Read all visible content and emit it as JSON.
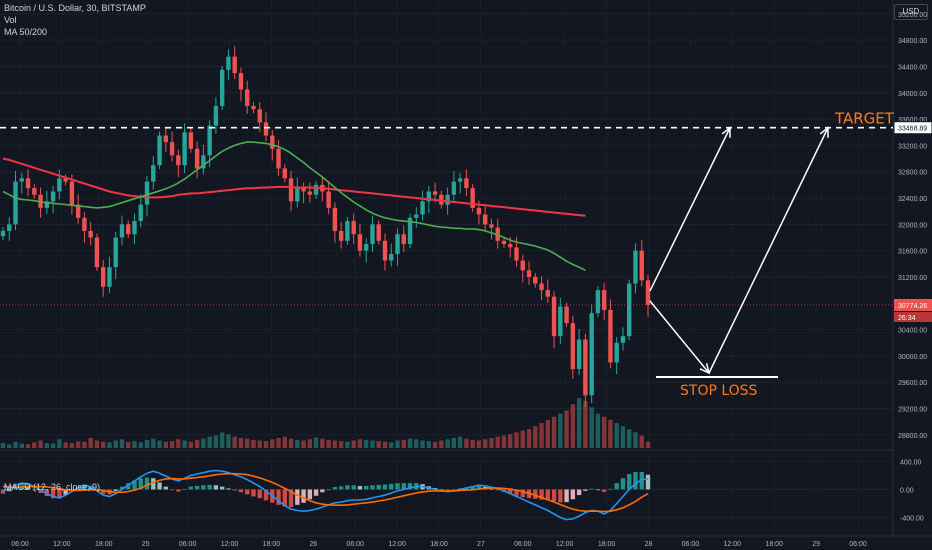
{
  "header": {
    "symbol_line": "Bitcoin / U.S. Dollar, 30, BITSTAMP",
    "volume_label": "Vol",
    "ma_label": "MA 50/200",
    "currency": "USD",
    "macd_label": "MACD (12, 26, close, 9)"
  },
  "colors": {
    "background": "#131722",
    "up": "#26a69a",
    "down": "#ef5350",
    "ma_fast": "#4caf50",
    "ma_slow": "#f23645",
    "macd_line": "#2196f3",
    "signal_line": "#ff6d00",
    "annotation": "#ffffff",
    "annotation_text": "#ff7a1a"
  },
  "chart_data": [
    {
      "type": "candlestick",
      "title": "Bitcoin / U.S. Dollar, 30, BITSTAMP",
      "y_ticks": [
        "35200.00",
        "34800.00",
        "34400.00",
        "34000.00",
        "33600.00",
        "33200.00",
        "32800.00",
        "32400.00",
        "32000.00",
        "31600.00",
        "31200.00",
        "30400.00",
        "30000.00",
        "29600.00",
        "29200.00",
        "28800.00"
      ],
      "y_range": [
        28600,
        35350
      ],
      "x_ticks": [
        "06:00",
        "12:00",
        "18:00",
        "25",
        "06:00",
        "12:00",
        "18:00",
        "26",
        "06:00",
        "12:00",
        "18:00",
        "27",
        "06:00",
        "12:00",
        "18:00",
        "28",
        "06:00",
        "12:00",
        "18:00",
        "29",
        "06:00"
      ],
      "last_price": "30774.26",
      "countdown": "26:34",
      "target_price": "33468.89",
      "price_path": [
        31900,
        32000,
        32650,
        32700,
        32550,
        32450,
        32250,
        32350,
        32500,
        32700,
        32650,
        32300,
        32100,
        31900,
        31800,
        31350,
        31050,
        31350,
        31800,
        32000,
        31850,
        32050,
        32300,
        32650,
        32900,
        33350,
        33250,
        33050,
        32900,
        33400,
        33150,
        32850,
        33050,
        33500,
        33800,
        34350,
        34550,
        34300,
        34050,
        33800,
        33750,
        33550,
        33350,
        33150,
        32850,
        32700,
        32350,
        32550,
        32500,
        32450,
        32600,
        32500,
        32250,
        31900,
        31750,
        32050,
        31850,
        31600,
        31700,
        32000,
        31750,
        31450,
        31550,
        31850,
        31700,
        32100,
        32150,
        32350,
        32500,
        32450,
        32300,
        32450,
        32650,
        32700,
        32550,
        32250,
        32150,
        32000,
        31950,
        31750,
        31700,
        31650,
        31450,
        31300,
        31200,
        31100,
        31000,
        30900,
        30300,
        30750,
        30500,
        29800,
        30250,
        29400,
        30650,
        31000,
        30700,
        29900,
        30200,
        30300,
        31100,
        31600,
        31150,
        30774
      ],
      "ma_fast": [
        32500,
        32450,
        32400,
        32380,
        32370,
        32360,
        32340,
        32330,
        32320,
        32310,
        32300,
        32290,
        32280,
        32270,
        32260,
        32250,
        32260,
        32270,
        32300,
        32330,
        32360,
        32390,
        32420,
        32450,
        32480,
        32510,
        32540,
        32580,
        32630,
        32690,
        32760,
        32830,
        32900,
        32970,
        33040,
        33110,
        33160,
        33200,
        33230,
        33250,
        33250,
        33240,
        33230,
        33210,
        33180,
        33140,
        33080,
        33010,
        32940,
        32860,
        32790,
        32720,
        32640,
        32560,
        32480,
        32410,
        32340,
        32280,
        32220,
        32170,
        32130,
        32100,
        32080,
        32060,
        32050,
        32040,
        32030,
        32010,
        31990,
        31970,
        31960,
        31950,
        31940,
        31940,
        31930,
        31930,
        31920,
        31900,
        31870,
        31840,
        31800,
        31760,
        31730,
        31710,
        31690,
        31670,
        31640,
        31610,
        31560,
        31500,
        31440,
        31390,
        31350,
        31300
      ],
      "ma_slow": [
        33000,
        32980,
        32950,
        32920,
        32890,
        32860,
        32830,
        32800,
        32770,
        32740,
        32710,
        32680,
        32650,
        32620,
        32590,
        32560,
        32530,
        32500,
        32480,
        32460,
        32440,
        32430,
        32420,
        32410,
        32410,
        32410,
        32420,
        32430,
        32450,
        32460,
        32470,
        32470,
        32480,
        32490,
        32500,
        32510,
        32520,
        32530,
        32540,
        32550,
        32550,
        32555,
        32560,
        32565,
        32570,
        32570,
        32565,
        32560,
        32560,
        32560,
        32555,
        32550,
        32540,
        32530,
        32520,
        32510,
        32500,
        32490,
        32480,
        32470,
        32460,
        32450,
        32440,
        32430,
        32420,
        32410,
        32400,
        32390,
        32380,
        32370,
        32360,
        32350,
        32340,
        32330,
        32320,
        32310,
        32300,
        32290,
        32280,
        32270,
        32260,
        32250,
        32240,
        32230,
        32220,
        32210,
        32200,
        32190,
        32180,
        32170,
        32160,
        32150,
        32140,
        32130
      ],
      "volume": [
        8,
        6,
        10,
        7,
        6,
        9,
        12,
        8,
        7,
        14,
        9,
        8,
        11,
        10,
        16,
        12,
        10,
        9,
        12,
        14,
        10,
        11,
        9,
        13,
        15,
        12,
        10,
        11,
        14,
        12,
        10,
        13,
        15,
        18,
        20,
        25,
        22,
        18,
        16,
        15,
        13,
        12,
        11,
        14,
        16,
        18,
        15,
        13,
        12,
        14,
        17,
        15,
        13,
        12,
        11,
        10,
        12,
        14,
        13,
        12,
        11,
        10,
        9,
        12,
        13,
        15,
        14,
        12,
        11,
        10,
        12,
        14,
        16,
        18,
        15,
        13,
        12,
        14,
        16,
        18,
        20,
        22,
        25,
        28,
        30,
        35,
        40,
        45,
        50,
        55,
        60,
        70,
        80,
        75,
        65,
        55,
        50,
        45,
        40,
        35,
        30,
        25,
        20,
        10
      ]
    },
    {
      "type": "line",
      "title": "MACD (12, 26, close, 9)",
      "y_ticks": [
        "400.00",
        "0.00",
        "-400.00"
      ],
      "y_range": [
        -550,
        520
      ],
      "series": [
        {
          "name": "macd",
          "values": [
            -20,
            10,
            60,
            90,
            80,
            40,
            -10,
            -60,
            -100,
            -120,
            -80,
            -30,
            20,
            60,
            40,
            -20,
            -80,
            -100,
            -60,
            0,
            60,
            120,
            180,
            230,
            260,
            230,
            190,
            150,
            120,
            160,
            200,
            220,
            240,
            260,
            270,
            260,
            240,
            210,
            180,
            140,
            90,
            40,
            -20,
            -90,
            -160,
            -230,
            -280,
            -300,
            -310,
            -300,
            -280,
            -250,
            -220,
            -190,
            -180,
            -160,
            -150,
            -150,
            -140,
            -120,
            -100,
            -80,
            -50,
            -20,
            0,
            20,
            40,
            40,
            20,
            0,
            -20,
            -30,
            -20,
            0,
            20,
            40,
            60,
            50,
            30,
            10,
            -20,
            -60,
            -100,
            -140,
            -180,
            -220,
            -260,
            -300,
            -350,
            -400,
            -430,
            -420,
            -380,
            -330,
            -300,
            -310,
            -350,
            -300,
            -200,
            -100,
            0,
            80,
            140,
            150
          ]
        },
        {
          "name": "signal",
          "values": [
            40,
            35,
            30,
            35,
            40,
            42,
            40,
            35,
            25,
            10,
            -5,
            -15,
            -15,
            -10,
            -5,
            -5,
            -15,
            -30,
            -40,
            -40,
            -30,
            -10,
            20,
            60,
            100,
            130,
            150,
            155,
            150,
            152,
            160,
            170,
            180,
            195,
            210,
            220,
            225,
            225,
            220,
            210,
            190,
            165,
            135,
            100,
            60,
            15,
            -30,
            -80,
            -120,
            -160,
            -190,
            -210,
            -220,
            -225,
            -225,
            -220,
            -210,
            -200,
            -190,
            -180,
            -165,
            -150,
            -130,
            -110,
            -90,
            -70,
            -50,
            -35,
            -25,
            -20,
            -20,
            -20,
            -20,
            -15,
            -10,
            -5,
            5,
            15,
            20,
            20,
            15,
            5,
            -10,
            -30,
            -55,
            -85,
            -115,
            -145,
            -180,
            -215,
            -250,
            -280,
            -300,
            -310,
            -310,
            -310,
            -315,
            -310,
            -290,
            -260,
            -220,
            -170,
            -110,
            -60
          ]
        }
      ]
    }
  ],
  "annotations": {
    "target_label": "TARGET",
    "stop_loss_label": "STOP LOSS"
  }
}
